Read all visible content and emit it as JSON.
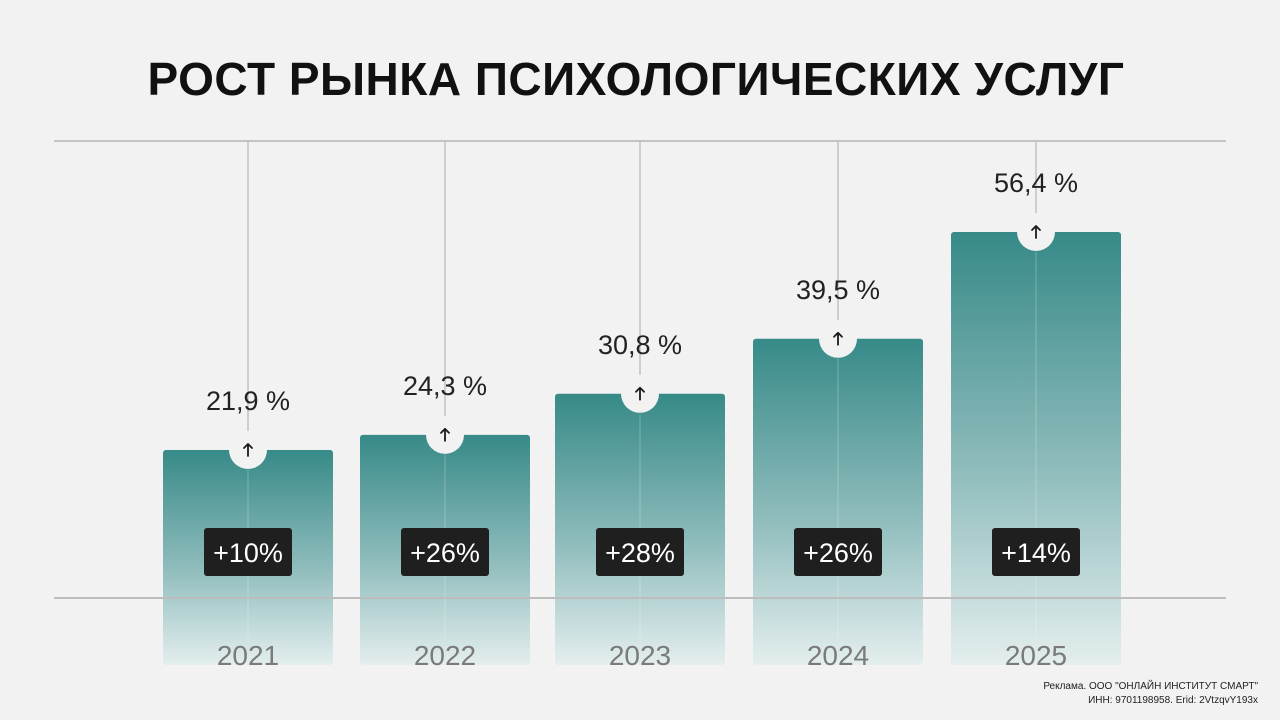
{
  "title": "РОСТ РЫНКА ПСИХОЛОГИЧЕСКИХ УСЛУГ",
  "chart_data": {
    "type": "bar",
    "title": "РОСТ РЫНКА ПСИХОЛОГИЧЕСКИХ УСЛУГ",
    "categories": [
      "2021",
      "2022",
      "2023",
      "2024",
      "2025"
    ],
    "values": [
      21.9,
      24.3,
      30.8,
      39.5,
      56.4
    ],
    "value_labels": [
      "21,9 %",
      "24,3 %",
      "30,8 %",
      "39,5 %",
      "56,4 %"
    ],
    "growth_labels": [
      "+10%",
      "+26%",
      "+28%",
      "+26%",
      "+14%"
    ],
    "xlabel": "",
    "ylabel": "",
    "grid": false,
    "bar_color_top": "#368a88",
    "bar_color_bottom": "#e4eeee",
    "badge_color": "#1f1f1f"
  },
  "footer": {
    "line1": "Реклама. ООО \"ОНЛАЙН ИНСТИТУТ СМАРТ\"",
    "line2": "ИНН: 9701198958. Erid: 2VtzqvY193x"
  }
}
